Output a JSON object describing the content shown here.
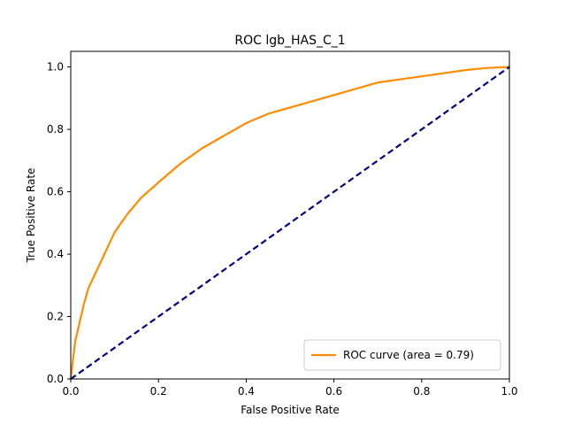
{
  "chart_data": {
    "type": "line",
    "title": "ROC lgb_HAS_C_1",
    "xlabel": "False Positive Rate",
    "ylabel": "True Positive Rate",
    "xlim": [
      0.0,
      1.0
    ],
    "ylim": [
      0.0,
      1.05
    ],
    "grid": false,
    "legend_position": "lower-right",
    "x_ticks": [
      "0.0",
      "0.2",
      "0.4",
      "0.6",
      "0.8",
      "1.0"
    ],
    "y_ticks": [
      "0.0",
      "0.2",
      "0.4",
      "0.6",
      "0.8",
      "1.0"
    ],
    "series": [
      {
        "name": "ROC curve (area = 0.79)",
        "color": "#ff8c00",
        "style": "solid",
        "x": [
          0.0,
          0.005,
          0.01,
          0.02,
          0.03,
          0.04,
          0.05,
          0.07,
          0.1,
          0.13,
          0.16,
          0.2,
          0.25,
          0.3,
          0.35,
          0.4,
          0.45,
          0.5,
          0.55,
          0.6,
          0.65,
          0.7,
          0.75,
          0.8,
          0.85,
          0.9,
          0.95,
          1.0
        ],
        "y": [
          0.0,
          0.06,
          0.12,
          0.18,
          0.24,
          0.29,
          0.32,
          0.38,
          0.47,
          0.53,
          0.58,
          0.63,
          0.69,
          0.74,
          0.78,
          0.82,
          0.85,
          0.87,
          0.89,
          0.91,
          0.93,
          0.95,
          0.96,
          0.97,
          0.98,
          0.99,
          0.997,
          1.0
        ]
      },
      {
        "name": "",
        "color": "#000080",
        "style": "dashed",
        "x": [
          0.0,
          1.0
        ],
        "y": [
          0.0,
          1.0
        ]
      }
    ]
  }
}
